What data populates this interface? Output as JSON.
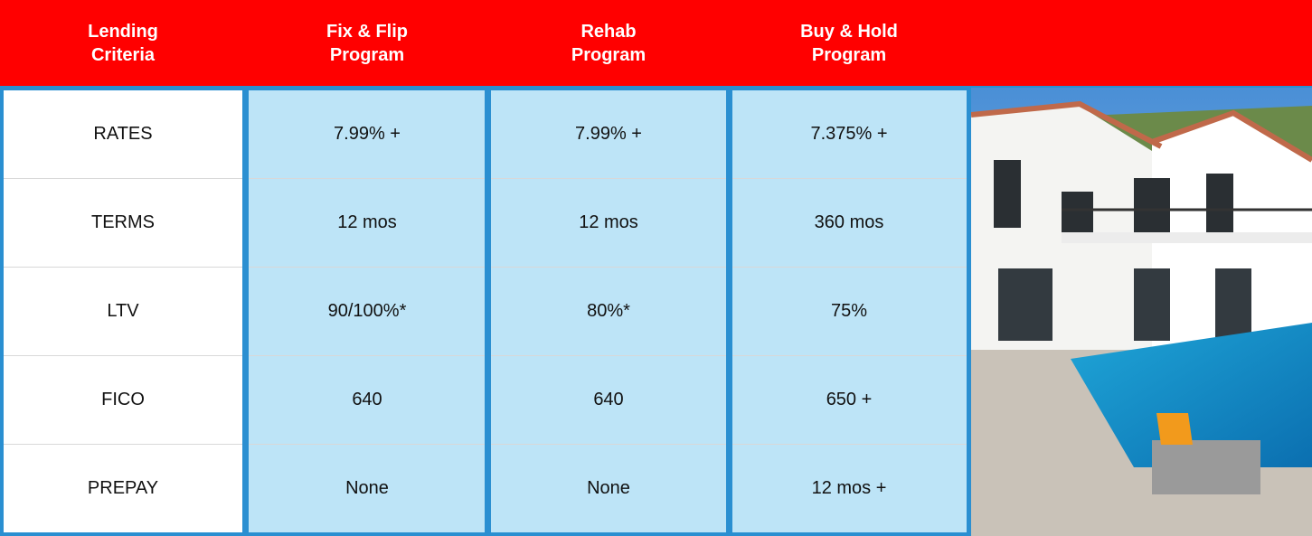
{
  "table": {
    "header": [
      "Lending Criteria",
      "Fix & Flip Program",
      "Rehab Program",
      "Buy & Hold Program"
    ],
    "rows": [
      [
        "RATES",
        "7.99% +",
        "7.99% +",
        "7.375% +"
      ],
      [
        "TERMS",
        "12 mos",
        "12 mos",
        "360 mos"
      ],
      [
        "LTV",
        "90/100%*",
        "80%*",
        "75%"
      ],
      [
        "FICO",
        "640",
        "640",
        "650 +"
      ],
      [
        "PREPAY",
        "None",
        "None",
        "12 mos +"
      ]
    ]
  }
}
